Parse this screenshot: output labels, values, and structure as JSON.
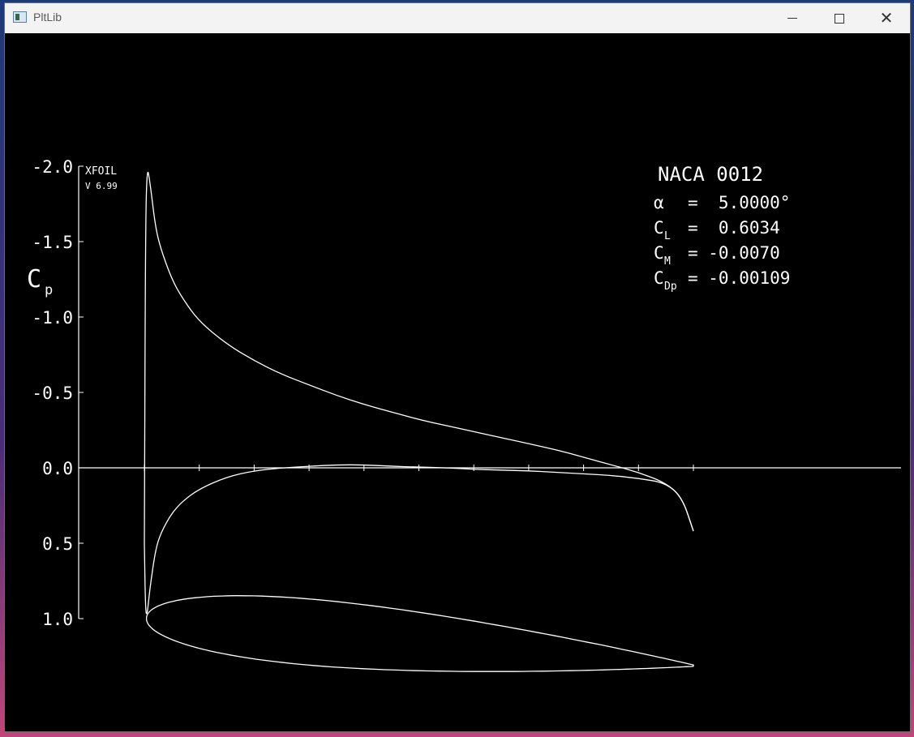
{
  "window": {
    "title": "PltLib"
  },
  "plot": {
    "program": "XFOIL",
    "version": "V 6.99",
    "y_axis_label": "C",
    "y_axis_label_sub": "p",
    "y_ticks": [
      "-2.0",
      "-1.5",
      "-1.0",
      "-0.5",
      "0.0",
      "0.5",
      "1.0"
    ],
    "airfoil_name": "NACA 0012",
    "results": [
      {
        "symbol": "α",
        "sub": "",
        "value": "=  5.0000°"
      },
      {
        "symbol": "C",
        "sub": "L",
        "value": "=  0.6034"
      },
      {
        "symbol": "C",
        "sub": "M",
        "value": "= -0.0070"
      },
      {
        "symbol": "C",
        "sub": "Dp",
        "value": "= -0.00109"
      }
    ]
  },
  "chart_data": {
    "type": "line",
    "ylim": [
      1.0,
      -2.0
    ],
    "xlim": [
      0.0,
      1.0
    ],
    "series": [
      {
        "x": [
          0.0,
          0.002,
          0.005,
          0.01,
          0.02,
          0.03,
          0.05,
          0.07,
          0.1,
          0.15,
          0.2,
          0.25,
          0.3,
          0.35,
          0.4,
          0.45,
          0.5,
          0.55,
          0.6,
          0.65,
          0.7,
          0.75,
          0.8,
          0.85,
          0.9,
          0.95,
          0.98,
          1.0
        ],
        "values": [
          0.5,
          -1.6,
          -2.0,
          -1.9,
          -1.6,
          -1.45,
          -1.25,
          -1.12,
          -0.97,
          -0.82,
          -0.71,
          -0.62,
          -0.55,
          -0.48,
          -0.42,
          -0.37,
          -0.32,
          -0.28,
          -0.24,
          -0.2,
          -0.16,
          -0.12,
          -0.07,
          -0.02,
          0.03,
          0.1,
          0.2,
          0.42
        ]
      },
      {
        "x": [
          0.0,
          0.002,
          0.005,
          0.01,
          0.02,
          0.03,
          0.05,
          0.07,
          0.1,
          0.15,
          0.2,
          0.25,
          0.3,
          0.35,
          0.4,
          0.45,
          0.5,
          0.55,
          0.6,
          0.65,
          0.7,
          0.75,
          0.8,
          0.85,
          0.9,
          0.95,
          0.98,
          1.0
        ],
        "values": [
          0.5,
          0.95,
          0.98,
          0.8,
          0.55,
          0.43,
          0.3,
          0.22,
          0.14,
          0.06,
          0.02,
          0.0,
          -0.01,
          -0.02,
          -0.02,
          -0.01,
          -0.005,
          0.0,
          0.01,
          0.015,
          0.02,
          0.03,
          0.04,
          0.05,
          0.07,
          0.1,
          0.2,
          0.42
        ]
      }
    ]
  }
}
